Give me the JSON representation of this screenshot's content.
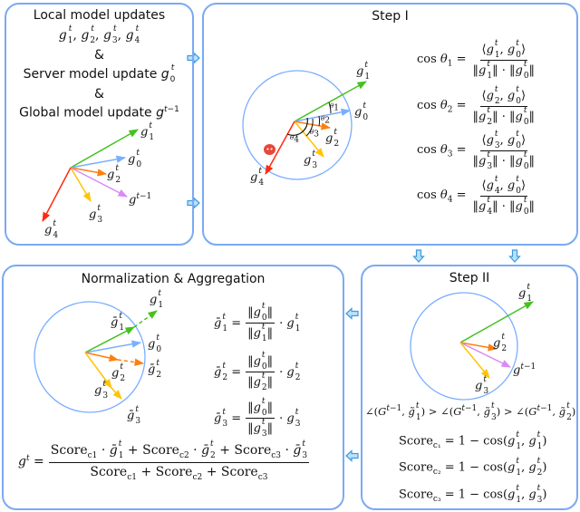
{
  "panel_inputs": {
    "line1": "Local model updates",
    "line2": "g_1^t, g_2^t, g_3^t, g_4^t",
    "amp1": "&",
    "line3": "Server model update g_0^t",
    "amp2": "&",
    "line4": "Global model update g^{t-1}",
    "labels": {
      "g1": "g_1^t",
      "g0": "g_0^t",
      "g2": "g_2^t",
      "gprev": "g^{t-1}",
      "g3": "g_3^t",
      "g4": "g_4^t"
    }
  },
  "panel_step1": {
    "title": "Step I",
    "labels": {
      "g1": "g_1^t",
      "g0": "g_0^t",
      "g2": "g_2^t",
      "g3": "g_3^t",
      "g4": "g_4^t",
      "th1": "θ_1",
      "th2": "θ_2",
      "th3": "θ_3",
      "th4": "θ_4"
    },
    "equations": [
      {
        "lhs": "cos θ_1 =",
        "num": "⟨g_1^t, g_0^t⟩",
        "den": "‖g_1^t‖ · ‖g_0^t‖"
      },
      {
        "lhs": "cos θ_2 =",
        "num": "⟨g_2^t, g_0^t⟩",
        "den": "‖g_2^t‖ · ‖g_0^t‖"
      },
      {
        "lhs": "cos θ_3 =",
        "num": "⟨g_3^t, g_0^t⟩",
        "den": "‖g_3^t‖ · ‖g_0^t‖"
      },
      {
        "lhs": "cos θ_4 =",
        "num": "⟨g_4^t, g_0^t⟩",
        "den": "‖g_4^t‖ · ‖g_0^t‖"
      }
    ],
    "malicious_icon": "devil-icon"
  },
  "panel_step2": {
    "title": "Step II",
    "labels": {
      "g1": "g_1^t",
      "g2": "g_2^t",
      "gprev": "g^{t-1}",
      "g3": "g_3^t"
    },
    "inequality": "∠(G^{t-1}, g̃_1^t) > ∠(G^{t-1}, g̃_3^t) > ∠(G^{t-1}, g̃_2^t)",
    "scores": [
      "Score_{c₁} = 1 − cos(g_1^t, g_1^t)",
      "Score_{c₂} = 1 − cos(g_1^t, g_2^t)",
      "Score_{c₃} = 1 − cos(g_1^t, g_3^t)"
    ]
  },
  "panel_norm": {
    "title": "Normalization & Aggregation",
    "labels": {
      "g1": "g_1^t",
      "g1bar": "ḡ_1^t",
      "g0": "g_0^t",
      "g2": "g_2^t",
      "g2bar": "ḡ_2^t",
      "g3": "g_3^t",
      "g3bar": "ḡ_3^t"
    },
    "equations": [
      {
        "lhs": "ḡ_1^t =",
        "num": "‖g_0^t‖",
        "den": "‖g_1^t‖",
        "rhs": "· g_1^t"
      },
      {
        "lhs": "ḡ_2^t =",
        "num": "‖g_0^t‖",
        "den": "‖g_2^t‖",
        "rhs": "· g_2^t"
      },
      {
        "lhs": "ḡ_3^t =",
        "num": "‖g_0^t‖",
        "den": "‖g_3^t‖",
        "rhs": "· g_3^t"
      }
    ],
    "aggregate": {
      "lhs": "g^t =",
      "num": "Score_{c1} · ḡ_1^t + Score_{c2} · ḡ_2^t + Score_{c3} · ḡ_3^t",
      "den": "Score_{c1} + Score_{c2} + Score_{c3}"
    }
  },
  "colors": {
    "border": "#7aaaf2",
    "g1": "#44c21f",
    "g0": "#7aaeff",
    "g2": "#ff7f0e",
    "g3": "#ffc400",
    "g4": "#ff2a10",
    "gprev": "#d98af5",
    "flow_arrow": "#3a9be0"
  }
}
